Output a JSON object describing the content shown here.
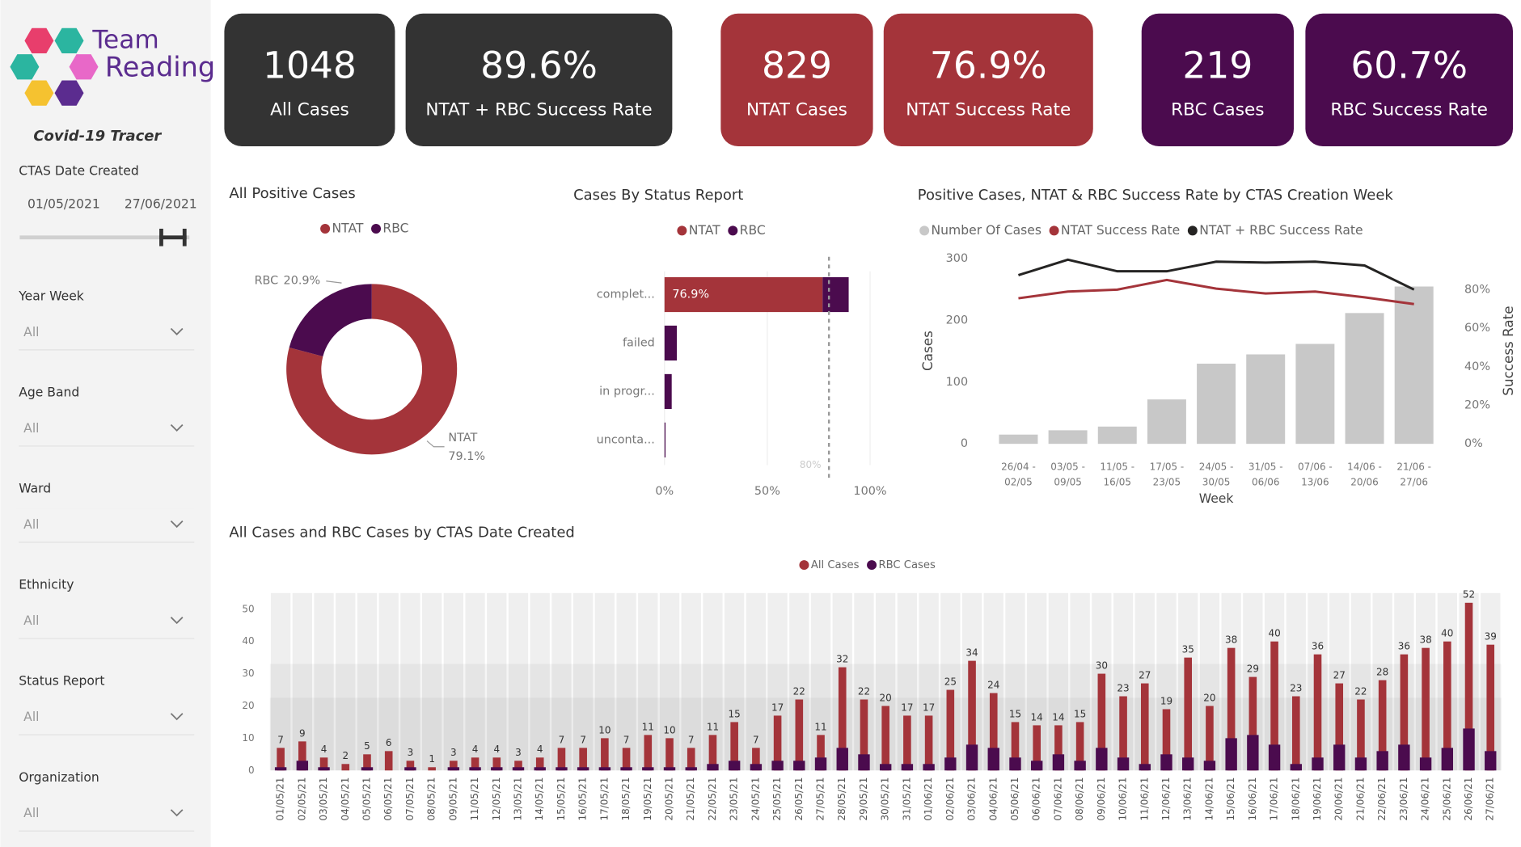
{
  "sidebar": {
    "logo": [
      "Team",
      "Reading"
    ],
    "app_title": "Covid-19 Tracer",
    "date_filter": {
      "label": "CTAS Date Created",
      "from": "01/05/2021",
      "to": "27/06/2021"
    },
    "slicers": [
      {
        "label": "Year Week",
        "value": "All"
      },
      {
        "label": "Age Band",
        "value": "All"
      },
      {
        "label": "Ward",
        "value": "All"
      },
      {
        "label": "Ethnicity",
        "value": "All"
      },
      {
        "label": "Status Report",
        "value": "All"
      },
      {
        "label": "Organization",
        "value": "All"
      }
    ]
  },
  "kpis": [
    {
      "value": "1048",
      "label": "All Cases"
    },
    {
      "value": "89.6%",
      "label": "NTAT + RBC Success Rate"
    },
    {
      "value": "829",
      "label": "NTAT Cases"
    },
    {
      "value": "76.9%",
      "label": "NTAT Success Rate"
    },
    {
      "value": "219",
      "label": "RBC Cases"
    },
    {
      "value": "60.7%",
      "label": "RBC Success Rate"
    }
  ],
  "chart_data": [
    {
      "type": "donut",
      "title": "All Positive Cases",
      "categories": [
        "NTAT",
        "RBC"
      ],
      "values": [
        79.1,
        20.9
      ],
      "value_labels": [
        "79.1%",
        "20.9%"
      ],
      "colors": [
        "#a4343a",
        "#4b0b4e"
      ]
    },
    {
      "type": "hbar",
      "title": "Cases By Status Report",
      "stacked": true,
      "categories": [
        "complet...",
        "failed",
        "in progr...",
        "unconta..."
      ],
      "series": [
        {
          "name": "NTAT",
          "color": "#a4343a",
          "values": [
            76.9,
            0,
            0,
            0
          ],
          "value_labels": [
            "76.9%",
            null,
            null,
            null
          ]
        },
        {
          "name": "RBC",
          "color": "#4b0b4e",
          "values": [
            12.7,
            6,
            3.5,
            0.5
          ]
        }
      ],
      "xlim": [
        0,
        100
      ],
      "xticks": [
        {
          "value": 0,
          "label": "0%"
        },
        {
          "value": 50,
          "label": "50%"
        },
        {
          "value": 100,
          "label": "100%"
        }
      ],
      "reference_line": {
        "value": 80,
        "label": "80%"
      }
    },
    {
      "type": "combo",
      "title": "Positive Cases, NTAT & RBC Success Rate by CTAS Creation Week",
      "categories": [
        [
          "26/04 -",
          "02/05"
        ],
        [
          "03/05 -",
          "09/05"
        ],
        [
          "11/05 -",
          "16/05"
        ],
        [
          "17/05 -",
          "23/05"
        ],
        [
          "24/05 -",
          "30/05"
        ],
        [
          "31/05 -",
          "06/06"
        ],
        [
          "07/06 -",
          "13/06"
        ],
        [
          "14/06 -",
          "20/06"
        ],
        [
          "21/06 -",
          "27/06"
        ]
      ],
      "series": [
        {
          "name": "Number Of Cases",
          "type": "bar",
          "color": "#c8c8c8",
          "values": [
            15,
            22,
            28,
            72,
            130,
            145,
            162,
            212,
            255
          ]
        },
        {
          "name": "NTAT Success Rate",
          "type": "line",
          "axis": "y2",
          "color": "#a4343a",
          "values": [
            75.5,
            79,
            80,
            85,
            80.5,
            78,
            79,
            76,
            72.5
          ]
        },
        {
          "name": "NTAT + RBC Success Rate",
          "type": "line",
          "axis": "y2",
          "color": "#252423",
          "values": [
            87.5,
            95.5,
            89.5,
            89.5,
            94.5,
            94,
            94.5,
            92.5,
            80
          ]
        }
      ],
      "ylim": [
        0,
        300
      ],
      "yticks": [
        0,
        100,
        200,
        300
      ],
      "y2lim": [
        0,
        96
      ],
      "y2ticks": [
        {
          "value": 0,
          "label": "0%"
        },
        {
          "value": 20,
          "label": "20%"
        },
        {
          "value": 40,
          "label": "40%"
        },
        {
          "value": 60,
          "label": "60%"
        },
        {
          "value": 80,
          "label": "80%"
        }
      ],
      "ylabel": "Cases",
      "y2label": "Success Rate",
      "xlabel": "Week"
    },
    {
      "type": "overlap-bar",
      "title": "All Cases and RBC Cases by CTAS Date Created",
      "categories": [
        "01/05/21",
        "02/05/21",
        "03/05/21",
        "04/05/21",
        "05/05/21",
        "06/05/21",
        "07/05/21",
        "08/05/21",
        "09/05/21",
        "11/05/21",
        "12/05/21",
        "13/05/21",
        "14/05/21",
        "15/05/21",
        "16/05/21",
        "17/05/21",
        "18/05/21",
        "19/05/21",
        "20/05/21",
        "21/05/21",
        "22/05/21",
        "23/05/21",
        "24/05/21",
        "25/05/21",
        "26/05/21",
        "27/05/21",
        "28/05/21",
        "29/05/21",
        "30/05/21",
        "31/05/21",
        "01/06/21",
        "02/06/21",
        "03/06/21",
        "04/06/21",
        "05/06/21",
        "06/06/21",
        "07/06/21",
        "08/06/21",
        "09/06/21",
        "10/06/21",
        "11/06/21",
        "12/06/21",
        "13/06/21",
        "14/06/21",
        "15/06/21",
        "16/06/21",
        "17/06/21",
        "18/06/21",
        "19/06/21",
        "20/06/21",
        "21/06/21",
        "22/06/21",
        "23/06/21",
        "24/06/21",
        "25/06/21",
        "26/06/21",
        "27/06/21"
      ],
      "series": [
        {
          "name": "All Cases",
          "color": "#a4343a",
          "values": [
            7,
            9,
            4,
            2,
            5,
            6,
            3,
            1,
            3,
            4,
            4,
            3,
            4,
            7,
            7,
            10,
            7,
            11,
            10,
            7,
            11,
            15,
            7,
            17,
            22,
            11,
            32,
            22,
            20,
            17,
            17,
            25,
            34,
            24,
            15,
            14,
            14,
            15,
            30,
            23,
            27,
            19,
            35,
            20,
            38,
            29,
            40,
            23,
            36,
            27,
            22,
            28,
            36,
            38,
            40,
            52,
            39
          ]
        },
        {
          "name": "RBC Cases",
          "color": "#4b0b4e",
          "values": [
            1,
            3,
            1,
            0,
            1,
            0,
            1,
            0,
            1,
            1,
            1,
            1,
            1,
            1,
            1,
            1,
            1,
            1,
            1,
            1,
            2,
            3,
            2,
            3,
            3,
            4,
            7,
            5,
            2,
            2,
            2,
            4,
            8,
            7,
            4,
            3,
            5,
            3,
            7,
            4,
            2,
            5,
            4,
            3,
            10,
            11,
            8,
            2,
            4,
            8,
            4,
            6,
            8,
            4,
            7,
            13,
            6
          ]
        }
      ],
      "ylim": [
        0,
        55
      ],
      "yticks": [
        0,
        10,
        20,
        30,
        40,
        50
      ]
    }
  ]
}
